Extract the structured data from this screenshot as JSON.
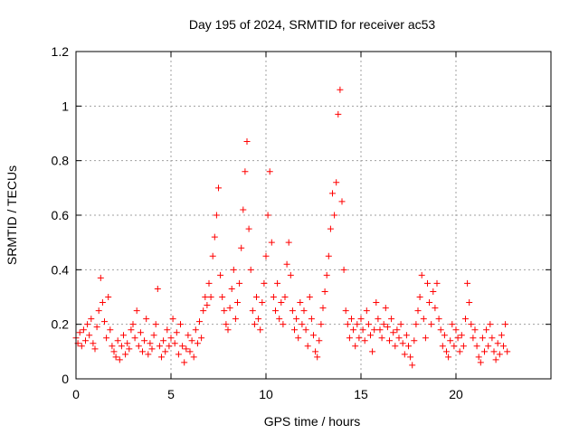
{
  "chart_data": {
    "type": "scatter",
    "title": "Day 195 of 2024, SRMTID for receiver ac53",
    "xlabel": "GPS time / hours",
    "ylabel": "SRMTID / TECUs",
    "xlim": [
      0,
      25
    ],
    "ylim": [
      0,
      1.2
    ],
    "xticks": [
      0,
      5,
      10,
      15,
      20
    ],
    "xtick_labels": [
      "0",
      "5",
      "10",
      "15",
      "20"
    ],
    "yticks": [
      0,
      0.2,
      0.4,
      0.6,
      0.8,
      1.0,
      1.2
    ],
    "ytick_labels": [
      "0",
      "0.2",
      "0.4",
      "0.6",
      "0.8",
      "1",
      "1.2"
    ],
    "grid": true,
    "marker": "plus",
    "series": [
      {
        "name": "SRMTID",
        "color": "#ff0000",
        "points": [
          [
            0.0,
            0.15
          ],
          [
            0.1,
            0.13
          ],
          [
            0.2,
            0.17
          ],
          [
            0.3,
            0.12
          ],
          [
            0.4,
            0.18
          ],
          [
            0.5,
            0.14
          ],
          [
            0.6,
            0.2
          ],
          [
            0.7,
            0.16
          ],
          [
            0.8,
            0.22
          ],
          [
            0.9,
            0.13
          ],
          [
            1.0,
            0.11
          ],
          [
            1.1,
            0.19
          ],
          [
            1.2,
            0.25
          ],
          [
            1.3,
            0.37
          ],
          [
            1.4,
            0.28
          ],
          [
            1.5,
            0.21
          ],
          [
            1.6,
            0.15
          ],
          [
            1.7,
            0.3
          ],
          [
            1.8,
            0.18
          ],
          [
            1.9,
            0.12
          ],
          [
            2.0,
            0.1
          ],
          [
            2.1,
            0.08
          ],
          [
            2.2,
            0.14
          ],
          [
            2.3,
            0.07
          ],
          [
            2.4,
            0.12
          ],
          [
            2.5,
            0.16
          ],
          [
            2.6,
            0.09
          ],
          [
            2.7,
            0.13
          ],
          [
            2.8,
            0.11
          ],
          [
            2.9,
            0.18
          ],
          [
            3.0,
            0.2
          ],
          [
            3.1,
            0.15
          ],
          [
            3.2,
            0.25
          ],
          [
            3.3,
            0.12
          ],
          [
            3.4,
            0.17
          ],
          [
            3.5,
            0.1
          ],
          [
            3.6,
            0.14
          ],
          [
            3.7,
            0.22
          ],
          [
            3.8,
            0.09
          ],
          [
            3.9,
            0.13
          ],
          [
            4.0,
            0.11
          ],
          [
            4.1,
            0.16
          ],
          [
            4.2,
            0.2
          ],
          [
            4.3,
            0.33
          ],
          [
            4.4,
            0.12
          ],
          [
            4.5,
            0.08
          ],
          [
            4.6,
            0.14
          ],
          [
            4.7,
            0.1
          ],
          [
            4.8,
            0.18
          ],
          [
            4.9,
            0.12
          ],
          [
            5.0,
            0.15
          ],
          [
            5.1,
            0.22
          ],
          [
            5.2,
            0.13
          ],
          [
            5.3,
            0.17
          ],
          [
            5.4,
            0.09
          ],
          [
            5.5,
            0.2
          ],
          [
            5.6,
            0.12
          ],
          [
            5.7,
            0.06
          ],
          [
            5.8,
            0.11
          ],
          [
            5.9,
            0.16
          ],
          [
            6.0,
            0.1
          ],
          [
            6.1,
            0.14
          ],
          [
            6.2,
            0.08
          ],
          [
            6.3,
            0.18
          ],
          [
            6.4,
            0.13
          ],
          [
            6.5,
            0.21
          ],
          [
            6.6,
            0.15
          ],
          [
            6.7,
            0.25
          ],
          [
            6.8,
            0.3
          ],
          [
            6.9,
            0.27
          ],
          [
            7.0,
            0.35
          ],
          [
            7.1,
            0.3
          ],
          [
            7.2,
            0.45
          ],
          [
            7.3,
            0.52
          ],
          [
            7.4,
            0.6
          ],
          [
            7.5,
            0.7
          ],
          [
            7.6,
            0.38
          ],
          [
            7.7,
            0.3
          ],
          [
            7.8,
            0.25
          ],
          [
            7.9,
            0.2
          ],
          [
            8.0,
            0.18
          ],
          [
            8.1,
            0.26
          ],
          [
            8.2,
            0.33
          ],
          [
            8.3,
            0.4
          ],
          [
            8.4,
            0.22
          ],
          [
            8.5,
            0.28
          ],
          [
            8.6,
            0.35
          ],
          [
            8.7,
            0.48
          ],
          [
            8.8,
            0.62
          ],
          [
            8.9,
            0.76
          ],
          [
            9.0,
            0.87
          ],
          [
            9.1,
            0.55
          ],
          [
            9.2,
            0.4
          ],
          [
            9.3,
            0.25
          ],
          [
            9.4,
            0.2
          ],
          [
            9.5,
            0.3
          ],
          [
            9.6,
            0.22
          ],
          [
            9.7,
            0.18
          ],
          [
            9.8,
            0.28
          ],
          [
            9.9,
            0.35
          ],
          [
            10.0,
            0.45
          ],
          [
            10.1,
            0.6
          ],
          [
            10.2,
            0.76
          ],
          [
            10.3,
            0.5
          ],
          [
            10.4,
            0.3
          ],
          [
            10.5,
            0.25
          ],
          [
            10.6,
            0.35
          ],
          [
            10.7,
            0.22
          ],
          [
            10.8,
            0.28
          ],
          [
            10.9,
            0.2
          ],
          [
            11.0,
            0.3
          ],
          [
            11.1,
            0.42
          ],
          [
            11.2,
            0.5
          ],
          [
            11.3,
            0.38
          ],
          [
            11.4,
            0.25
          ],
          [
            11.5,
            0.18
          ],
          [
            11.6,
            0.22
          ],
          [
            11.7,
            0.15
          ],
          [
            11.8,
            0.28
          ],
          [
            11.9,
            0.2
          ],
          [
            12.0,
            0.25
          ],
          [
            12.1,
            0.18
          ],
          [
            12.2,
            0.12
          ],
          [
            12.3,
            0.3
          ],
          [
            12.4,
            0.22
          ],
          [
            12.5,
            0.16
          ],
          [
            12.6,
            0.1
          ],
          [
            12.7,
            0.08
          ],
          [
            12.8,
            0.14
          ],
          [
            12.9,
            0.2
          ],
          [
            13.0,
            0.26
          ],
          [
            13.1,
            0.32
          ],
          [
            13.2,
            0.38
          ],
          [
            13.3,
            0.45
          ],
          [
            13.4,
            0.55
          ],
          [
            13.5,
            0.68
          ],
          [
            13.6,
            0.6
          ],
          [
            13.7,
            0.72
          ],
          [
            13.8,
            0.97
          ],
          [
            13.9,
            1.06
          ],
          [
            14.0,
            0.65
          ],
          [
            14.1,
            0.4
          ],
          [
            14.2,
            0.25
          ],
          [
            14.3,
            0.2
          ],
          [
            14.4,
            0.15
          ],
          [
            14.5,
            0.22
          ],
          [
            14.6,
            0.18
          ],
          [
            14.7,
            0.12
          ],
          [
            14.8,
            0.2
          ],
          [
            14.9,
            0.15
          ],
          [
            15.0,
            0.22
          ],
          [
            15.1,
            0.18
          ],
          [
            15.2,
            0.14
          ],
          [
            15.3,
            0.25
          ],
          [
            15.4,
            0.2
          ],
          [
            15.5,
            0.16
          ],
          [
            15.6,
            0.1
          ],
          [
            15.7,
            0.18
          ],
          [
            15.8,
            0.28
          ],
          [
            15.9,
            0.22
          ],
          [
            16.0,
            0.18
          ],
          [
            16.1,
            0.15
          ],
          [
            16.2,
            0.2
          ],
          [
            16.3,
            0.26
          ],
          [
            16.4,
            0.19
          ],
          [
            16.5,
            0.14
          ],
          [
            16.6,
            0.22
          ],
          [
            16.7,
            0.17
          ],
          [
            16.8,
            0.12
          ],
          [
            16.9,
            0.18
          ],
          [
            17.0,
            0.15
          ],
          [
            17.1,
            0.2
          ],
          [
            17.2,
            0.13
          ],
          [
            17.3,
            0.09
          ],
          [
            17.4,
            0.16
          ],
          [
            17.5,
            0.12
          ],
          [
            17.6,
            0.08
          ],
          [
            17.7,
            0.05
          ],
          [
            17.8,
            0.14
          ],
          [
            17.9,
            0.2
          ],
          [
            18.0,
            0.25
          ],
          [
            18.1,
            0.3
          ],
          [
            18.2,
            0.38
          ],
          [
            18.3,
            0.22
          ],
          [
            18.4,
            0.15
          ],
          [
            18.5,
            0.35
          ],
          [
            18.6,
            0.28
          ],
          [
            18.7,
            0.2
          ],
          [
            18.8,
            0.32
          ],
          [
            18.9,
            0.26
          ],
          [
            19.0,
            0.35
          ],
          [
            19.1,
            0.22
          ],
          [
            19.2,
            0.18
          ],
          [
            19.3,
            0.12
          ],
          [
            19.4,
            0.16
          ],
          [
            19.5,
            0.1
          ],
          [
            19.6,
            0.08
          ],
          [
            19.7,
            0.14
          ],
          [
            19.8,
            0.2
          ],
          [
            19.9,
            0.12
          ],
          [
            20.0,
            0.18
          ],
          [
            20.1,
            0.15
          ],
          [
            20.2,
            0.1
          ],
          [
            20.3,
            0.16
          ],
          [
            20.4,
            0.12
          ],
          [
            20.5,
            0.22
          ],
          [
            20.6,
            0.35
          ],
          [
            20.7,
            0.28
          ],
          [
            20.8,
            0.2
          ],
          [
            20.9,
            0.15
          ],
          [
            21.0,
            0.18
          ],
          [
            21.1,
            0.12
          ],
          [
            21.2,
            0.08
          ],
          [
            21.3,
            0.06
          ],
          [
            21.4,
            0.15
          ],
          [
            21.5,
            0.1
          ],
          [
            21.6,
            0.18
          ],
          [
            21.7,
            0.12
          ],
          [
            21.8,
            0.2
          ],
          [
            21.9,
            0.15
          ],
          [
            22.0,
            0.1
          ],
          [
            22.1,
            0.07
          ],
          [
            22.2,
            0.13
          ],
          [
            22.3,
            0.09
          ],
          [
            22.4,
            0.16
          ],
          [
            22.5,
            0.12
          ],
          [
            22.6,
            0.2
          ],
          [
            22.7,
            0.1
          ]
        ]
      }
    ]
  }
}
